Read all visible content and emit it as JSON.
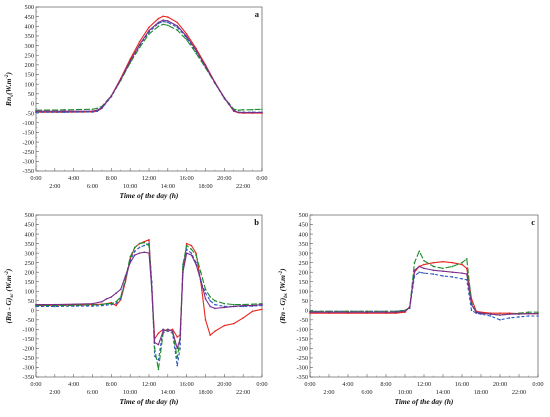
{
  "chart_data": [
    {
      "panel": "a",
      "type": "line",
      "ylabel": {
        "main": "Rn",
        "sub": "s",
        "units": "(W.m",
        "exp": "-2",
        "close": ")"
      },
      "xlabel": "Time of the day (h)",
      "ylim": [
        -350,
        500
      ],
      "yticks": [
        "500",
        "450",
        "400",
        "350",
        "300",
        "250",
        "200",
        "150",
        "100",
        "50",
        "0",
        "-50",
        "-100",
        "-150",
        "-200",
        "-250",
        "-300",
        "-350"
      ],
      "xticks_top": [
        "0:00",
        "4:00",
        "8:00",
        "12:00",
        "16:00",
        "20:00",
        "0:00"
      ],
      "xticks_bottom": [
        "2:00",
        "6:00",
        "10:00",
        "14:00",
        "18:00",
        "22:00"
      ],
      "series": [
        {
          "color": "#e8261f",
          "dash": "",
          "x": [
            0,
            3,
            6,
            6.5,
            7,
            8,
            9,
            10,
            11,
            12,
            13,
            13.5,
            14,
            15,
            16,
            17,
            18,
            19,
            20,
            20.5,
            21,
            21.5,
            22,
            23,
            24
          ],
          "y": [
            -45,
            -45,
            -44,
            -40,
            -25,
            40,
            130,
            230,
            320,
            395,
            440,
            452,
            448,
            420,
            360,
            285,
            200,
            110,
            30,
            -5,
            -40,
            -48,
            -50,
            -50,
            -50
          ]
        },
        {
          "color": "#2b59c3",
          "dash": "3,2",
          "x": [
            0,
            3,
            6,
            6.5,
            7,
            8,
            9,
            10,
            11,
            12,
            13,
            13.5,
            14,
            15,
            16,
            17,
            18,
            19,
            20,
            20.5,
            21,
            21.5,
            22,
            23,
            24
          ],
          "y": [
            -45,
            -45,
            -44,
            -40,
            -25,
            35,
            120,
            215,
            300,
            370,
            415,
            425,
            420,
            395,
            340,
            270,
            190,
            105,
            25,
            -5,
            -35,
            -45,
            -45,
            -45,
            -45
          ]
        },
        {
          "color": "#1e8a2a",
          "dash": "6,2",
          "x": [
            0,
            3,
            6,
            6.5,
            7,
            8,
            9,
            10,
            11,
            12,
            13,
            13.5,
            14,
            15,
            16,
            17,
            18,
            19,
            20,
            20.5,
            21,
            21.5,
            22,
            23,
            24
          ],
          "y": [
            -35,
            -33,
            -30,
            -25,
            -15,
            40,
            120,
            210,
            290,
            360,
            400,
            410,
            405,
            380,
            330,
            260,
            185,
            105,
            30,
            0,
            -30,
            -35,
            -33,
            -32,
            -30
          ]
        },
        {
          "color": "#7a2d8a",
          "dash": "",
          "x": [
            0,
            3,
            6,
            6.5,
            7,
            8,
            9,
            10,
            11,
            12,
            13,
            13.5,
            14,
            15,
            16,
            17,
            18,
            19,
            20,
            20.5,
            21,
            21.5,
            22,
            23,
            24
          ],
          "y": [
            -40,
            -40,
            -39,
            -35,
            -20,
            38,
            125,
            220,
            305,
            378,
            420,
            432,
            428,
            402,
            348,
            276,
            194,
            108,
            28,
            -3,
            -38,
            -46,
            -47,
            -47,
            -47
          ]
        }
      ]
    },
    {
      "panel": "b",
      "type": "line",
      "ylabel": {
        "open": "(Rn - G)",
        "sub": "sc",
        "units": " (W.m",
        "exp": "-2",
        "close": ")"
      },
      "xlabel": "Time of the day (h)",
      "ylim": [
        -350,
        500
      ],
      "yticks": [
        "500",
        "450",
        "400",
        "350",
        "300",
        "250",
        "200",
        "150",
        "100",
        "50",
        "0",
        "-50",
        "-100",
        "-150",
        "-200",
        "-250",
        "-300",
        "-350"
      ],
      "xticks_top": [
        "0:00",
        "4:00",
        "8:00",
        "12:00",
        "16:00",
        "20:00",
        "0:00"
      ],
      "xticks_bottom": [
        "2:00",
        "6:00",
        "10:00",
        "14:00",
        "18:00",
        "22:00"
      ],
      "series": [
        {
          "color": "#e8261f",
          "dash": "",
          "x": [
            0,
            2,
            4,
            6,
            7,
            7.5,
            8,
            8.5,
            9,
            9.5,
            10,
            10.5,
            11,
            11.5,
            12,
            12.3,
            12.6,
            13,
            13.5,
            14,
            14.5,
            15,
            15.3,
            15.6,
            16,
            16.5,
            17,
            17.5,
            18,
            18.5,
            19,
            20,
            21,
            22,
            23,
            24
          ],
          "y": [
            25,
            27,
            28,
            30,
            32,
            35,
            40,
            25,
            55,
            150,
            270,
            330,
            350,
            360,
            370,
            120,
            -150,
            -120,
            -100,
            -110,
            -100,
            -140,
            -130,
            200,
            350,
            340,
            300,
            150,
            -50,
            -130,
            -110,
            -80,
            -70,
            -40,
            -5,
            5
          ]
        },
        {
          "color": "#2b59c3",
          "dash": "3,2",
          "x": [
            0,
            2,
            4,
            6,
            7,
            7.5,
            8,
            8.5,
            9,
            9.5,
            10,
            10.5,
            11,
            11.5,
            12,
            12.3,
            12.6,
            13,
            13.5,
            14,
            14.5,
            15,
            15.3,
            15.6,
            16,
            16.5,
            17,
            17.5,
            18,
            18.5,
            19,
            20,
            21,
            22,
            23,
            24
          ],
          "y": [
            20,
            20,
            22,
            22,
            25,
            28,
            30,
            35,
            60,
            160,
            260,
            310,
            330,
            340,
            350,
            150,
            -240,
            -260,
            -100,
            -110,
            -120,
            -290,
            -200,
            230,
            320,
            300,
            250,
            150,
            90,
            50,
            30,
            20,
            20,
            20,
            22,
            25
          ]
        },
        {
          "color": "#1e8a2a",
          "dash": "6,2",
          "x": [
            0,
            2,
            4,
            6,
            7,
            7.5,
            8,
            8.5,
            9,
            9.5,
            10,
            10.5,
            11,
            11.5,
            12,
            12.3,
            12.6,
            13,
            13.5,
            14,
            14.5,
            15,
            15.3,
            15.6,
            16,
            16.5,
            17,
            17.5,
            18,
            18.5,
            19,
            20,
            21,
            22,
            23,
            24
          ],
          "y": [
            25,
            25,
            26,
            28,
            30,
            35,
            35,
            45,
            70,
            165,
            280,
            330,
            350,
            355,
            340,
            100,
            -200,
            -310,
            -120,
            -100,
            -110,
            -250,
            -150,
            240,
            340,
            320,
            290,
            200,
            110,
            70,
            50,
            35,
            30,
            30,
            32,
            35
          ]
        },
        {
          "color": "#7a2d8a",
          "dash": "",
          "x": [
            0,
            2,
            4,
            6,
            7,
            7.5,
            8,
            8.5,
            9,
            9.5,
            10,
            10.5,
            11,
            11.5,
            12,
            12.3,
            12.6,
            13,
            13.5,
            14,
            14.5,
            15,
            15.3,
            15.6,
            16,
            16.5,
            17,
            17.5,
            18,
            18.5,
            19,
            20,
            21,
            22,
            23,
            24
          ],
          "y": [
            30,
            30,
            32,
            35,
            45,
            60,
            70,
            90,
            110,
            180,
            250,
            290,
            300,
            305,
            300,
            110,
            -170,
            -180,
            -110,
            -100,
            -110,
            -200,
            -150,
            200,
            300,
            290,
            240,
            160,
            60,
            20,
            10,
            15,
            20,
            25,
            25,
            30
          ]
        }
      ]
    },
    {
      "panel": "c",
      "type": "line",
      "ylabel": {
        "open": "(Rn - G)",
        "sub": "bs",
        "units": " (W.m",
        "exp": "-2",
        "close": ")"
      },
      "xlabel": "Time of the day (h)",
      "ylim": [
        -350,
        500
      ],
      "yticks": [
        "500",
        "450",
        "400",
        "350",
        "300",
        "250",
        "200",
        "150",
        "100",
        "50",
        "0",
        "-50",
        "-100",
        "-150",
        "-200",
        "-250",
        "-300",
        "-350"
      ],
      "xticks_top": [
        "0:00",
        "4:00",
        "8:00",
        "12:00",
        "16:00",
        "20:00",
        "0:00"
      ],
      "xticks_bottom": [
        "2:00",
        "6:00",
        "10:00",
        "14:00",
        "18:00",
        "22:00"
      ],
      "series": [
        {
          "color": "#e8261f",
          "dash": "",
          "x": [
            0,
            2,
            4,
            6,
            8,
            9,
            10,
            10.5,
            11,
            11.5,
            12,
            13,
            14,
            15,
            16,
            16.5,
            17,
            17.5,
            18,
            19,
            20,
            21,
            22,
            23,
            24
          ],
          "y": [
            -15,
            -15,
            -15,
            -15,
            -15,
            -15,
            -10,
            20,
            200,
            230,
            240,
            250,
            255,
            250,
            240,
            220,
            60,
            -5,
            -10,
            -15,
            -15,
            -15,
            -18,
            -18,
            -18
          ]
        },
        {
          "color": "#2b59c3",
          "dash": "3,2",
          "x": [
            0,
            2,
            4,
            6,
            8,
            9,
            10,
            10.5,
            11,
            11.5,
            12,
            13,
            14,
            15,
            16,
            16.5,
            17,
            17.5,
            18,
            19,
            20,
            21,
            22,
            23,
            24
          ],
          "y": [
            -5,
            -5,
            -5,
            -5,
            -5,
            -5,
            0,
            10,
            180,
            200,
            195,
            190,
            180,
            175,
            165,
            160,
            0,
            -15,
            -20,
            -30,
            -50,
            -40,
            -35,
            -30,
            -30
          ]
        },
        {
          "color": "#1e8a2a",
          "dash": "6,2",
          "x": [
            0,
            2,
            4,
            6,
            8,
            9,
            10,
            10.5,
            11,
            11.5,
            12,
            13,
            14,
            15,
            16,
            16.5,
            17,
            17.5,
            18,
            19,
            20,
            21,
            22,
            23,
            24
          ],
          "y": [
            -5,
            -5,
            -5,
            -5,
            -5,
            -5,
            0,
            15,
            250,
            310,
            260,
            230,
            220,
            230,
            250,
            270,
            40,
            -10,
            -15,
            -20,
            -25,
            -20,
            -15,
            -10,
            -10
          ]
        },
        {
          "color": "#7a2d8a",
          "dash": "",
          "x": [
            0,
            2,
            4,
            6,
            8,
            9,
            10,
            10.5,
            11,
            11.5,
            12,
            13,
            14,
            15,
            16,
            16.5,
            17,
            17.5,
            18,
            19,
            20,
            21,
            22,
            23,
            24
          ],
          "y": [
            -10,
            -10,
            -10,
            -10,
            -10,
            -10,
            -5,
            15,
            210,
            230,
            220,
            210,
            205,
            200,
            195,
            190,
            30,
            -10,
            -15,
            -20,
            -25,
            -20,
            -20,
            -18,
            -18
          ]
        }
      ]
    }
  ]
}
